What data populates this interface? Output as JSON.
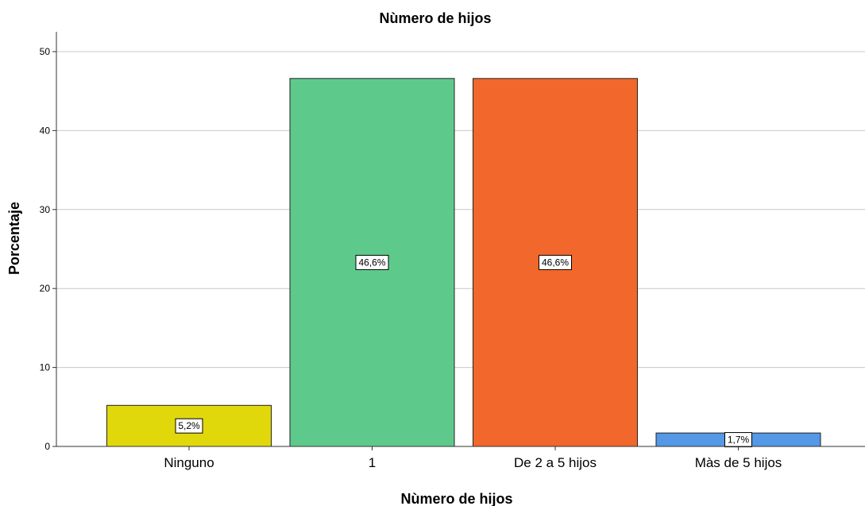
{
  "chart_data": {
    "type": "bar",
    "title": "Nùmero de hijos",
    "xlabel": "Nùmero de hijos",
    "ylabel": "Porcentaje",
    "categories": [
      "Ninguno",
      "1",
      "De 2 a 5 hijos",
      "Màs de 5 hijos"
    ],
    "values": [
      5.2,
      46.6,
      46.6,
      1.7
    ],
    "data_labels": [
      "5,2%",
      "46,6%",
      "46,6%",
      "1,7%"
    ],
    "colors": [
      "#e1d80b",
      "#5dca8b",
      "#f2672c",
      "#5598e5"
    ],
    "ylim": [
      0,
      52
    ],
    "yticks": [
      0,
      10,
      20,
      30,
      40,
      50
    ],
    "grid": true
  }
}
